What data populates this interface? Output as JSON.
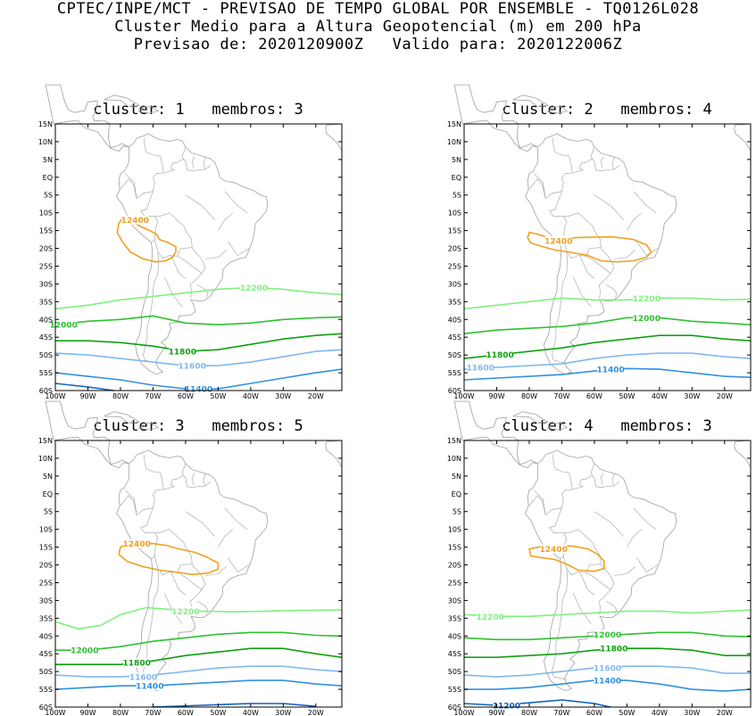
{
  "header": {
    "line1": "CPTEC/INPE/MCT - PREVISAO DE TEMPO GLOBAL POR ENSEMBLE - TQ0126L028",
    "line2": "Cluster Medio para a Altura Geopotencial (m) em 200 hPa",
    "line3": "Previsao de: 2020120900Z   Valido para: 2020122006Z"
  },
  "axes": {
    "lat_ticks": [
      "15N",
      "10N",
      "5N",
      "EQ",
      "5S",
      "10S",
      "15S",
      "20S",
      "25S",
      "30S",
      "35S",
      "40S",
      "45S",
      "50S",
      "55S",
      "60S"
    ],
    "lon_ticks": [
      "100W",
      "90W",
      "80W",
      "70W",
      "60W",
      "50W",
      "40W",
      "30W",
      "20W"
    ]
  },
  "colors": {
    "c12400": "#f0a020",
    "c12200": "#80f080",
    "c12000": "#30c030",
    "c11800": "#10a010",
    "c11600": "#80b8f0",
    "c11400": "#3090e0",
    "c11200": "#1060c0",
    "coast": "#a0a0a0"
  },
  "panels": [
    {
      "title": "cluster: 1   membros: 3",
      "contours": [
        {
          "value": "12400",
          "color": "c12400"
        },
        {
          "value": "12200",
          "color": "c12200"
        },
        {
          "value": "12000",
          "color": "c12000"
        },
        {
          "value": "11800",
          "color": "c11800"
        },
        {
          "value": "11600",
          "color": "c11600"
        },
        {
          "value": "11400",
          "color": "c11400"
        }
      ]
    },
    {
      "title": "cluster: 2   membros: 4",
      "contours": [
        {
          "value": "12400",
          "color": "c12400"
        },
        {
          "value": "12200",
          "color": "c12200"
        },
        {
          "value": "12000",
          "color": "c12000"
        },
        {
          "value": "11800",
          "color": "c11800"
        },
        {
          "value": "11600",
          "color": "c11600"
        },
        {
          "value": "11400",
          "color": "c11400"
        }
      ]
    },
    {
      "title": "cluster: 3   membros: 5",
      "contours": [
        {
          "value": "12400",
          "color": "c12400"
        },
        {
          "value": "12200",
          "color": "c12200"
        },
        {
          "value": "12000",
          "color": "c12000"
        },
        {
          "value": "11800",
          "color": "c11800"
        },
        {
          "value": "11600",
          "color": "c11600"
        },
        {
          "value": "11400",
          "color": "c11400"
        }
      ]
    },
    {
      "title": "cluster: 4   membros: 3",
      "contours": [
        {
          "value": "12400",
          "color": "c12400"
        },
        {
          "value": "12200",
          "color": "c12200"
        },
        {
          "value": "12000",
          "color": "c12000"
        },
        {
          "value": "11800",
          "color": "c11800"
        },
        {
          "value": "11600",
          "color": "c11600"
        },
        {
          "value": "11400",
          "color": "c11400"
        },
        {
          "value": "11200",
          "color": "c11200"
        }
      ]
    }
  ]
}
